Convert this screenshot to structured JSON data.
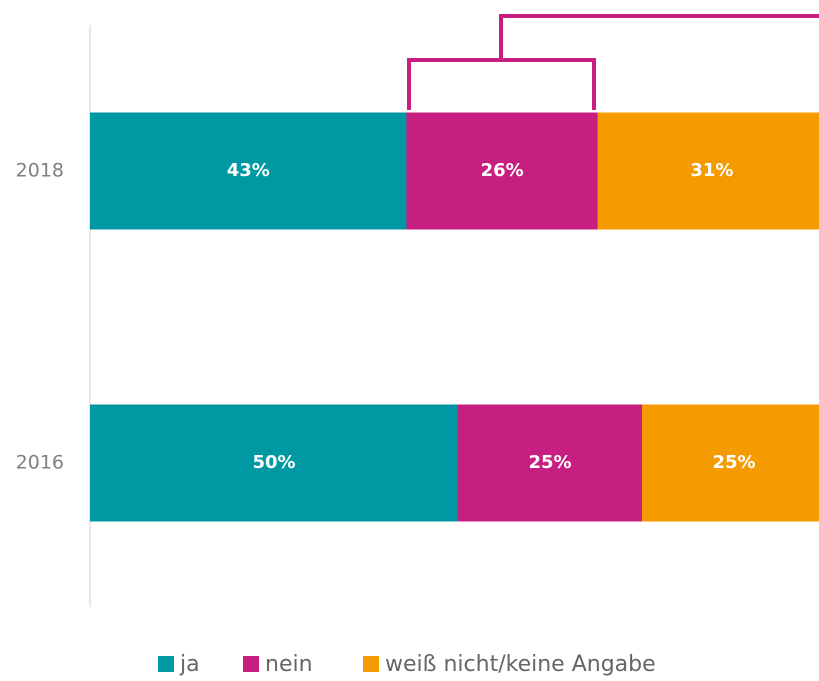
{
  "chart_data": {
    "type": "stacked-bar-horizontal",
    "categories": [
      "2018",
      "2016"
    ],
    "series": [
      {
        "name": "ja",
        "color": "#0099a3",
        "values": [
          43,
          50
        ],
        "value_labels": [
          "43%",
          "50%"
        ]
      },
      {
        "name": "nein",
        "color": "#c71f81",
        "values": [
          26,
          25
        ],
        "value_labels": [
          "26%",
          "25%"
        ]
      },
      {
        "name": "weiß nicht/keine Angabe",
        "color": "#f59b00",
        "values": [
          31,
          25
        ],
        "value_labels": [
          "31%",
          "25%"
        ]
      }
    ],
    "xlim": [
      0,
      100
    ],
    "legend": "bottom"
  }
}
